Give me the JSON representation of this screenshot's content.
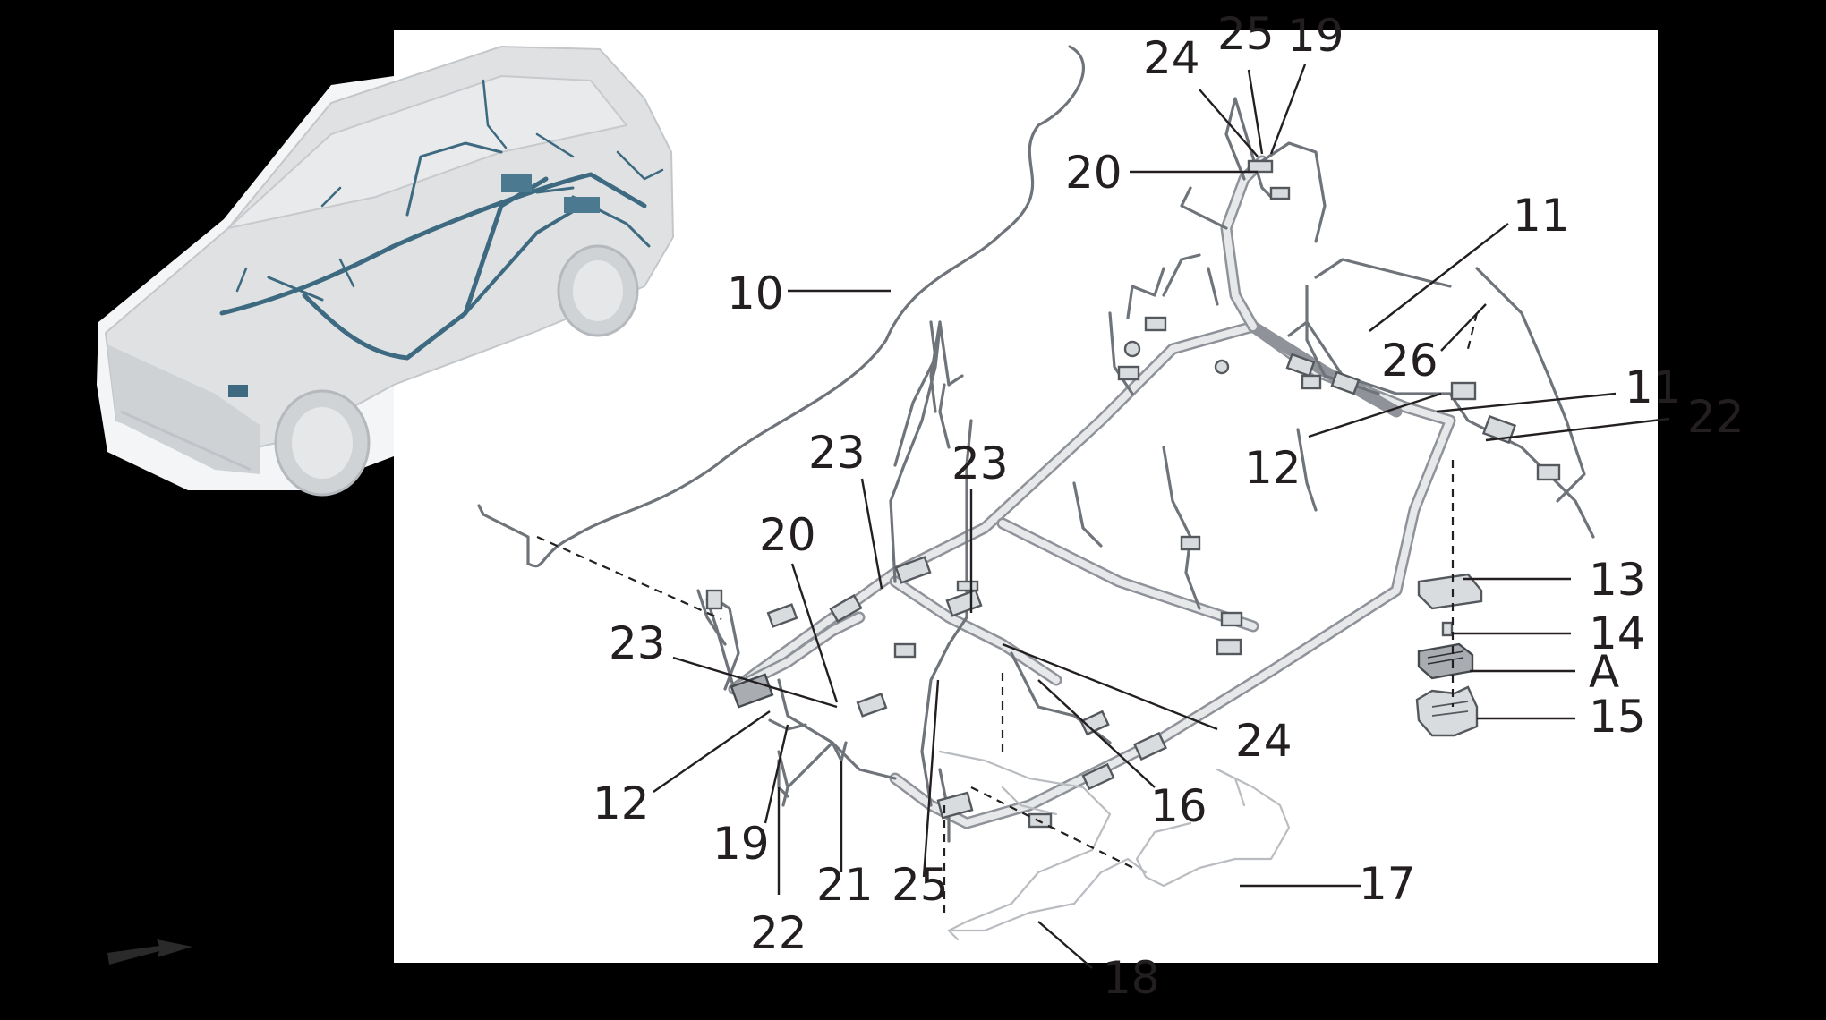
{
  "diagram": {
    "colors": {
      "background": "#000000",
      "panel": "#ffffff",
      "label": "#231f20",
      "harness": "#8f9399",
      "harness_highlight": "#3d6a80",
      "car_body": "#dfe1e3"
    },
    "callouts": [
      {
        "id": "c10",
        "text": "10"
      },
      {
        "id": "c11a",
        "text": "11"
      },
      {
        "id": "c11b",
        "text": "11"
      },
      {
        "id": "c12a",
        "text": "12"
      },
      {
        "id": "c12b",
        "text": "12"
      },
      {
        "id": "c13",
        "text": "13"
      },
      {
        "id": "c14",
        "text": "14"
      },
      {
        "id": "cA",
        "text": "A"
      },
      {
        "id": "c15",
        "text": "15"
      },
      {
        "id": "c16",
        "text": "16"
      },
      {
        "id": "c17",
        "text": "17"
      },
      {
        "id": "c18",
        "text": "18"
      },
      {
        "id": "c19a",
        "text": "19"
      },
      {
        "id": "c19b",
        "text": "19"
      },
      {
        "id": "c20a",
        "text": "20"
      },
      {
        "id": "c20b",
        "text": "20"
      },
      {
        "id": "c21",
        "text": "21"
      },
      {
        "id": "c22a",
        "text": "22"
      },
      {
        "id": "c22b",
        "text": "22"
      },
      {
        "id": "c23a",
        "text": "23"
      },
      {
        "id": "c23b",
        "text": "23"
      },
      {
        "id": "c23c",
        "text": "23"
      },
      {
        "id": "c24a",
        "text": "24"
      },
      {
        "id": "c24b",
        "text": "24"
      },
      {
        "id": "c25a",
        "text": "25"
      },
      {
        "id": "c25b",
        "text": "25"
      },
      {
        "id": "c26",
        "text": "26"
      }
    ],
    "icons": {
      "car": "car-thumbnail-icon",
      "direction": "forward-arrow-icon"
    }
  }
}
